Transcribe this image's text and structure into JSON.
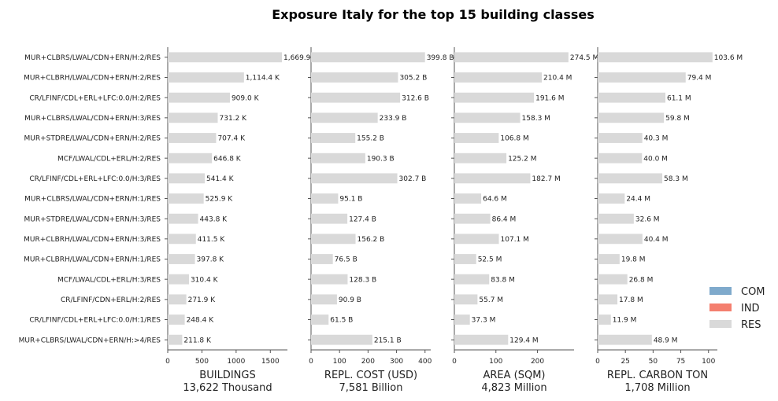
{
  "chart_data": {
    "type": "bar",
    "title": "Exposure Italy for the top 15 building classes",
    "categories": [
      "MUR+CLBRS/LWAL/CDN+ERN/H:2/RES",
      "MUR+CLBRH/LWAL/CDN+ERN/H:2/RES",
      "CR/LFINF/CDL+ERL+LFC:0.0/H:2/RES",
      "MUR+CLBRS/LWAL/CDN+ERN/H:3/RES",
      "MUR+STDRE/LWAL/CDN+ERN/H:2/RES",
      "MCF/LWAL/CDL+ERL/H:2/RES",
      "CR/LFINF/CDL+ERL+LFC:0.0/H:3/RES",
      "MUR+CLBRS/LWAL/CDN+ERN/H:1/RES",
      "MUR+STDRE/LWAL/CDN+ERN/H:3/RES",
      "MUR+CLBRH/LWAL/CDN+ERN/H:3/RES",
      "MUR+CLBRH/LWAL/CDN+ERN/H:1/RES",
      "MCF/LWAL/CDL+ERL/H:3/RES",
      "CR/LFINF/CDN+ERL/H:2/RES",
      "CR/LFINF/CDL+ERL+LFC:0.0/H:1/RES",
      "MUR+CLBRS/LWAL/CDN+ERN/H:>4/RES"
    ],
    "legend": {
      "position": "right",
      "entries": [
        {
          "name": "COM",
          "color": "#7faacc"
        },
        {
          "name": "IND",
          "color": "#f47f6f"
        },
        {
          "name": "RES",
          "color": "#d9d9d9"
        }
      ]
    },
    "panels": [
      {
        "xlabel": "BUILDINGS",
        "total": "13,622 Thousand",
        "xlim": [
          0,
          1750
        ],
        "xticks": [
          0,
          500,
          1000,
          1500
        ],
        "values": [
          1669.9,
          1114.4,
          909.0,
          731.2,
          707.4,
          646.8,
          541.4,
          525.9,
          443.8,
          411.5,
          397.8,
          310.4,
          271.9,
          248.4,
          211.8
        ],
        "labels": [
          "1,669.9 K",
          "1,114.4 K",
          "909.0 K",
          "731.2 K",
          "707.4 K",
          "646.8 K",
          "541.4 K",
          "525.9 K",
          "443.8 K",
          "411.5 K",
          "397.8 K",
          "310.4 K",
          "271.9 K",
          "248.4 K",
          "211.8 K"
        ]
      },
      {
        "xlabel": "REPL. COST (USD)",
        "total": "7,581 Billion",
        "xlim": [
          0,
          420
        ],
        "xticks": [
          0,
          100,
          200,
          300,
          400
        ],
        "values": [
          399.8,
          305.2,
          312.6,
          233.9,
          155.2,
          190.3,
          302.7,
          95.1,
          127.4,
          156.2,
          76.5,
          128.3,
          90.9,
          61.5,
          215.1
        ],
        "labels": [
          "399.8 B",
          "305.2 B",
          "312.6 B",
          "233.9 B",
          "155.2 B",
          "190.3 B",
          "302.7 B",
          "95.1 B",
          "127.4 B",
          "156.2 B",
          "76.5 B",
          "128.3 B",
          "90.9 B",
          "61.5 B",
          "215.1 B"
        ]
      },
      {
        "xlabel": "AREA (SQM)",
        "total": "4,823 Million",
        "xlim": [
          0,
          288
        ],
        "xticks": [
          0,
          100,
          200
        ],
        "values": [
          274.5,
          210.4,
          191.6,
          158.3,
          106.8,
          125.2,
          182.7,
          64.6,
          86.4,
          107.1,
          52.5,
          83.8,
          55.7,
          37.3,
          129.4
        ],
        "labels": [
          "274.5 M",
          "210.4 M",
          "191.6 M",
          "158.3 M",
          "106.8 M",
          "125.2 M",
          "182.7 M",
          "64.6 M",
          "86.4 M",
          "107.1 M",
          "52.5 M",
          "83.8 M",
          "55.7 M",
          "37.3 M",
          "129.4 M"
        ]
      },
      {
        "xlabel": "REPL. CARBON TON",
        "total": "1,708 Million",
        "xlim": [
          0,
          108
        ],
        "xticks": [
          0,
          25,
          50,
          75,
          100
        ],
        "values": [
          103.6,
          79.4,
          61.1,
          59.8,
          40.3,
          40.0,
          58.3,
          24.4,
          32.6,
          40.4,
          19.8,
          26.8,
          17.8,
          11.9,
          48.9
        ],
        "labels": [
          "103.6 M",
          "79.4 M",
          "61.1 M",
          "59.8 M",
          "40.3 M",
          "40.0 M",
          "58.3 M",
          "24.4 M",
          "32.6 M",
          "40.4 M",
          "19.8 M",
          "26.8 M",
          "17.8 M",
          "11.9 M",
          "48.9 M"
        ]
      }
    ],
    "bar_color": "#d9d9d9",
    "grid": false
  }
}
